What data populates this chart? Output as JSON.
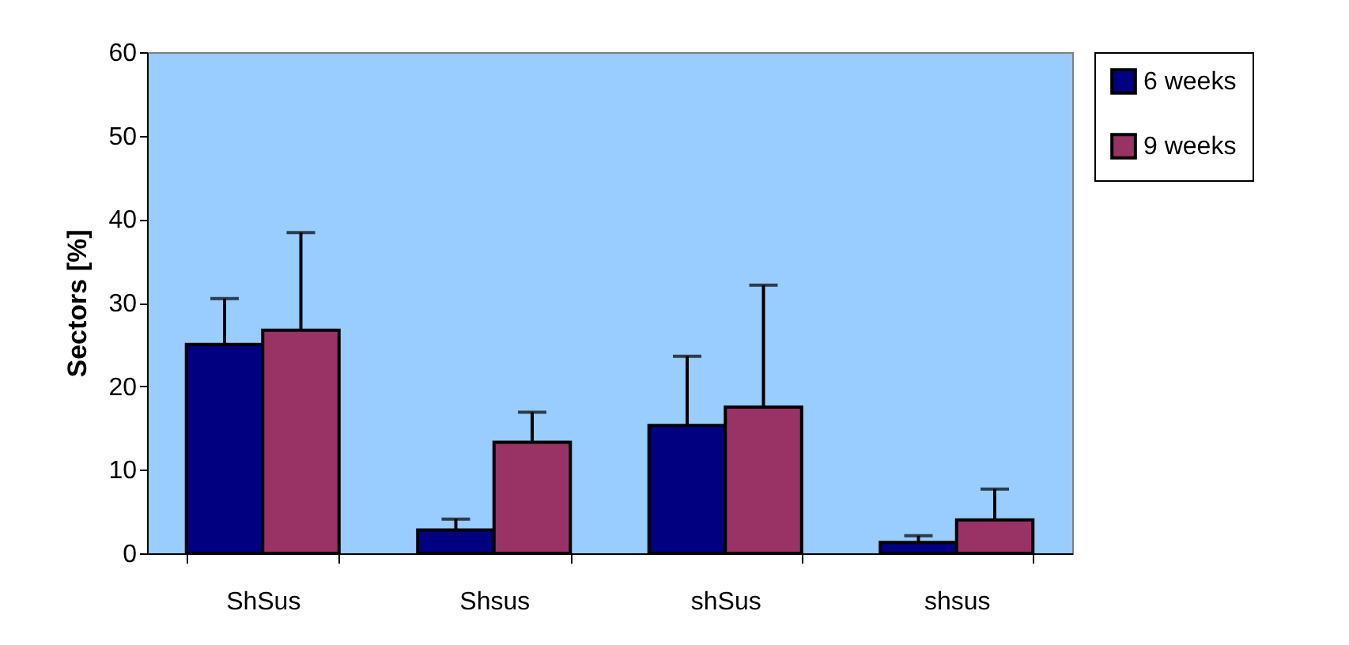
{
  "chart_data": {
    "type": "bar",
    "ylabel": "Sectors [%]",
    "categories": [
      "ShSus",
      "Shsus",
      "shSus",
      "shsus"
    ],
    "series": [
      {
        "name": "6 weeks",
        "color": "#000080",
        "values": [
          25.0,
          2.8,
          15.3,
          1.3
        ],
        "errors": [
          [
            25.0,
            30.5
          ],
          [
            2.8,
            4.1
          ],
          [
            15.3,
            23.6
          ],
          [
            1.3,
            2.1
          ]
        ]
      },
      {
        "name": "9 weeks",
        "color": "#993366",
        "values": [
          26.7,
          13.3,
          17.5,
          4.0
        ],
        "errors": [
          [
            26.7,
            38.4
          ],
          [
            13.3,
            16.9
          ],
          [
            17.5,
            32.1
          ],
          [
            4.0,
            7.7
          ]
        ]
      }
    ],
    "ylim": [
      0,
      60
    ],
    "yticks": [
      0,
      10,
      20,
      30,
      40,
      50,
      60
    ],
    "grid": false,
    "legend": "right"
  }
}
